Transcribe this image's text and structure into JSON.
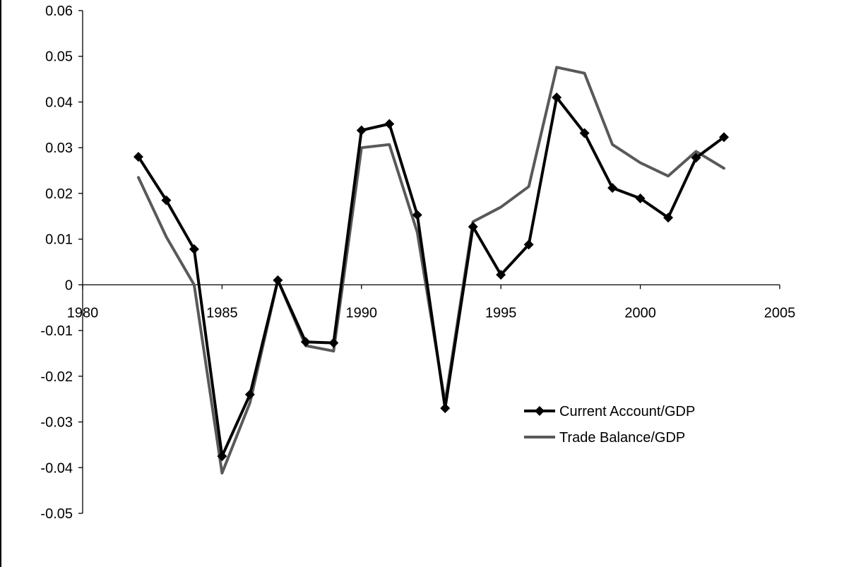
{
  "chart_data": {
    "type": "line",
    "title": "",
    "xlabel": "",
    "ylabel": "",
    "xlim": [
      1980,
      2005
    ],
    "ylim": [
      -0.05,
      0.06
    ],
    "x_ticks": [
      1980,
      1985,
      1990,
      1995,
      2000,
      2005
    ],
    "x_tick_labels": [
      "1980",
      "1985",
      "1990",
      "1995",
      "2000",
      "2005"
    ],
    "y_ticks": [
      0.06,
      0.05,
      0.04,
      0.03,
      0.02,
      0.01,
      0,
      -0.01,
      -0.02,
      -0.03,
      -0.04,
      -0.05
    ],
    "y_tick_labels": [
      "0.06",
      "0.05",
      "0.04",
      "0.03",
      "0.02",
      "0.01",
      "0",
      "-0.01",
      "-0.02",
      "-0.03",
      "-0.04",
      "-0.05"
    ],
    "grid": false,
    "legend_position": "lower-right",
    "series": [
      {
        "name": "Current Account/GDP",
        "color": "#000000",
        "marker": "diamond",
        "x": [
          1982,
          1983,
          1984,
          1985,
          1986,
          1987,
          1988,
          1989,
          1990,
          1991,
          1992,
          1993,
          1994,
          1995,
          1996,
          1997,
          1998,
          1999,
          2000,
          2001,
          2002,
          2003
        ],
        "y": [
          0.028,
          0.0185,
          0.0078,
          -0.0375,
          -0.024,
          0.001,
          -0.0125,
          -0.0127,
          0.0338,
          0.0352,
          0.0153,
          -0.027,
          0.0127,
          0.0022,
          0.0088,
          0.041,
          0.0332,
          0.0212,
          0.0189,
          0.0147,
          0.0278,
          0.0323
        ]
      },
      {
        "name": "Trade Balance/GDP",
        "color": "#595959",
        "marker": "none",
        "x": [
          1982,
          1983,
          1984,
          1985,
          1986,
          1987,
          1988,
          1989,
          1990,
          1991,
          1992,
          1993,
          1994,
          1995,
          1996,
          1997,
          1998,
          1999,
          2000,
          2001,
          2002,
          2003
        ],
        "y": [
          0.0235,
          0.0105,
          0,
          -0.0412,
          -0.0258,
          0.001,
          -0.0133,
          -0.0145,
          0.03,
          0.0307,
          0.0115,
          -0.0258,
          0.0138,
          0.017,
          0.0215,
          0.0476,
          0.0463,
          0.0307,
          0.0267,
          0.0238,
          0.0292,
          0.0255
        ]
      }
    ]
  }
}
